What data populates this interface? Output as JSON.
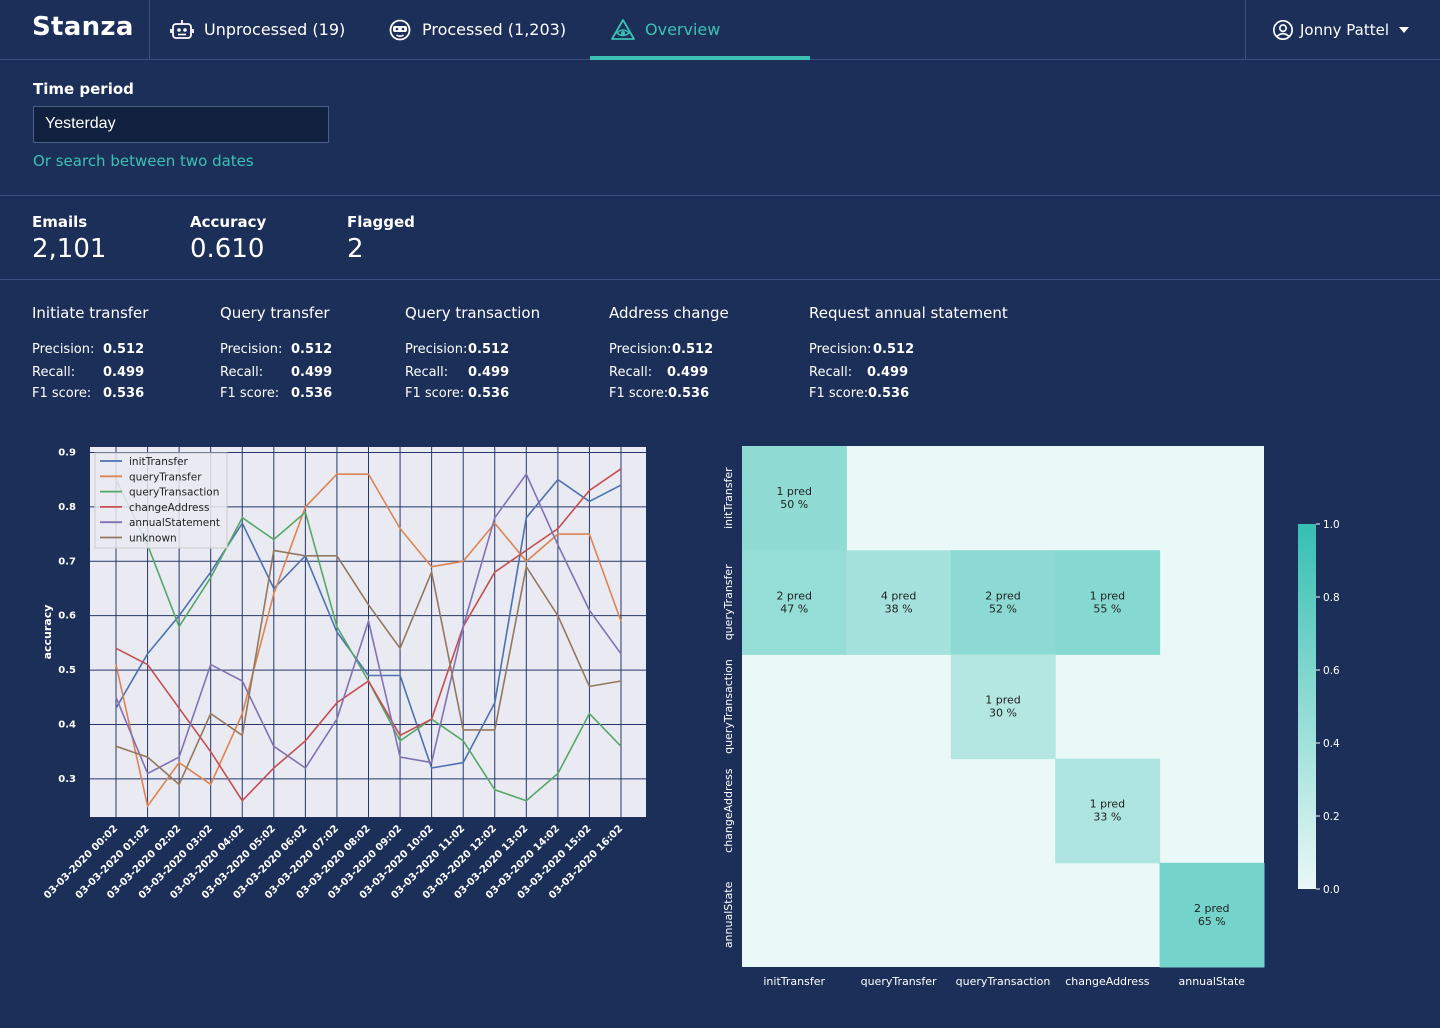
{
  "app": {
    "brand": "Stanza"
  },
  "nav": {
    "tabs": [
      {
        "label": "Unprocessed (19)",
        "icon": "robot-icon"
      },
      {
        "label": "Processed (1,203)",
        "icon": "smiley-robot-icon"
      },
      {
        "label": "Overview",
        "icon": "eye-triangle-icon",
        "active": true
      }
    ],
    "user": {
      "name": "Jonny Pattel",
      "icon": "user-circle-icon"
    }
  },
  "filter": {
    "label": "Time period",
    "value": "Yesterday",
    "link": "Or search between two dates"
  },
  "stats": [
    {
      "label": "Emails",
      "value": "2,101"
    },
    {
      "label": "Accuracy",
      "value": "0.610"
    },
    {
      "label": "Flagged",
      "value": "2"
    }
  ],
  "metrics": {
    "labels": {
      "precision": "Precision:",
      "recall": "Recall:",
      "f1": "F1 score:"
    },
    "groups": [
      {
        "title": "Initiate transfer",
        "precision": "0.512",
        "recall": "0.499",
        "f1": "0.536"
      },
      {
        "title": "Query transfer",
        "precision": "0.512",
        "recall": "0.499",
        "f1": "0.536"
      },
      {
        "title": "Query transaction",
        "precision": "0.512",
        "recall": "0.499",
        "f1": "0.536"
      },
      {
        "title": "Address change",
        "precision": "0.512",
        "recall": "0.499",
        "f1": "0.536"
      },
      {
        "title": "Request annual statement",
        "precision": "0.512",
        "recall": "0.499",
        "f1": "0.536"
      }
    ]
  },
  "colors": {
    "accent": "#3cc1b4",
    "background": "#1b2f58"
  },
  "chart_data": [
    {
      "type": "line",
      "ylabel": "accuracy",
      "ylim": [
        0.23,
        0.91
      ],
      "yticks": [
        0.3,
        0.4,
        0.5,
        0.6,
        0.7,
        0.8,
        0.9
      ],
      "grid": true,
      "legend": "top-left",
      "categories": [
        "03-03-2020 00:02",
        "03-03-2020 01:02",
        "03-03-2020 02:02",
        "03-03-2020 03:02",
        "03-03-2020 04:02",
        "03-03-2020 05:02",
        "03-03-2020 06:02",
        "03-03-2020 07:02",
        "03-03-2020 08:02",
        "03-03-2020 09:02",
        "03-03-2020 10:02",
        "03-03-2020 11:02",
        "03-03-2020 12:02",
        "03-03-2020 13:02",
        "03-03-2020 14:02",
        "03-03-2020 15:02",
        "03-03-2020 16:02"
      ],
      "series": [
        {
          "name": "initTransfer",
          "color": "#4c72b0",
          "values": [
            0.43,
            0.53,
            0.6,
            0.68,
            0.77,
            0.65,
            0.71,
            0.57,
            0.49,
            0.49,
            0.32,
            0.33,
            0.44,
            0.78,
            0.85,
            0.81,
            0.84
          ]
        },
        {
          "name": "queryTransfer",
          "color": "#dd8452",
          "values": [
            0.51,
            0.25,
            0.33,
            0.29,
            0.42,
            0.64,
            0.8,
            0.86,
            0.86,
            0.76,
            0.69,
            0.7,
            0.77,
            0.7,
            0.75,
            0.75,
            0.59
          ]
        },
        {
          "name": "queryTransaction",
          "color": "#55a868",
          "values": [
            0.85,
            0.73,
            0.58,
            0.67,
            0.78,
            0.74,
            0.79,
            0.58,
            0.48,
            0.37,
            0.41,
            0.37,
            0.28,
            0.26,
            0.31,
            0.42,
            0.36
          ]
        },
        {
          "name": "changeAddress",
          "color": "#c44e52",
          "values": [
            0.54,
            0.51,
            0.43,
            0.35,
            0.26,
            0.32,
            0.37,
            0.44,
            0.48,
            0.38,
            0.41,
            0.58,
            0.68,
            0.72,
            0.76,
            0.83,
            0.87
          ]
        },
        {
          "name": "annualStatement",
          "color": "#8172b3",
          "values": [
            0.45,
            0.31,
            0.34,
            0.51,
            0.48,
            0.36,
            0.32,
            0.41,
            0.59,
            0.34,
            0.33,
            0.58,
            0.78,
            0.86,
            0.73,
            0.61,
            0.53
          ]
        },
        {
          "name": "unknown",
          "color": "#937860",
          "values": [
            0.36,
            0.34,
            0.29,
            0.42,
            0.38,
            0.72,
            0.71,
            0.71,
            0.62,
            0.54,
            0.68,
            0.39,
            0.39,
            0.69,
            0.6,
            0.47,
            0.48
          ]
        }
      ]
    },
    {
      "type": "heatmap",
      "rows": [
        "initTransfer",
        "queryTransfer",
        "queryTransaction",
        "changeAddress",
        "annualState"
      ],
      "cols": [
        "initTransfer",
        "queryTransfer",
        "queryTransaction",
        "changeAddress",
        "annualState"
      ],
      "cells": [
        {
          "r": 0,
          "c": 0,
          "value": 0.5,
          "count": "1 pred",
          "pct": "50 %"
        },
        {
          "r": 1,
          "c": 0,
          "value": 0.47,
          "count": "2 pred",
          "pct": "47 %"
        },
        {
          "r": 1,
          "c": 1,
          "value": 0.38,
          "count": "4 pred",
          "pct": "38 %"
        },
        {
          "r": 1,
          "c": 2,
          "value": 0.52,
          "count": "2 pred",
          "pct": "52 %"
        },
        {
          "r": 1,
          "c": 3,
          "value": 0.55,
          "count": "1 pred",
          "pct": "55 %"
        },
        {
          "r": 2,
          "c": 2,
          "value": 0.3,
          "count": "1 pred",
          "pct": "30 %"
        },
        {
          "r": 3,
          "c": 3,
          "value": 0.33,
          "count": "1 pred",
          "pct": "33 %"
        },
        {
          "r": 4,
          "c": 4,
          "value": 0.65,
          "count": "2 pred",
          "pct": "65 %"
        }
      ],
      "colorbar": {
        "ticks": [
          "0.0",
          "0.2",
          "0.4",
          "0.6",
          "0.8",
          "1.0"
        ],
        "range": [
          0,
          1
        ],
        "low_color": "#eaf8f7",
        "high_color": "#35bfb2"
      }
    }
  ]
}
